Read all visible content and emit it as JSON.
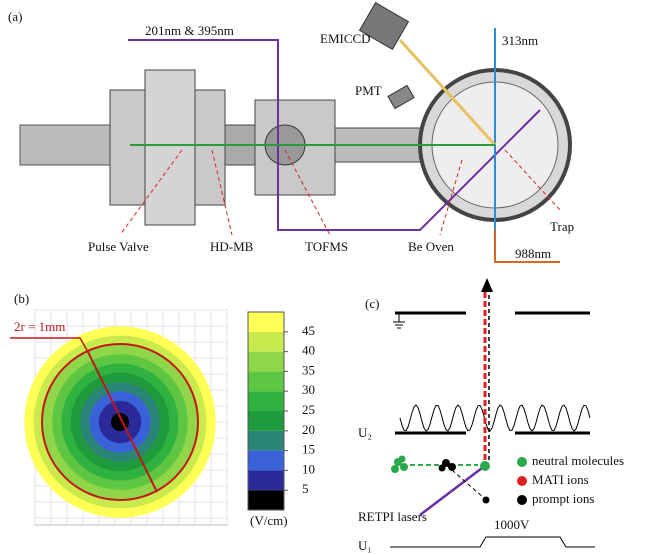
{
  "panel_a": {
    "label": "(a)",
    "beam_uv": "201nm & 395nm",
    "camera": "EMICCD",
    "beam_313": "313nm",
    "pmt": "PMT",
    "pulse_valve": "Pulse Valve",
    "hd_mb": "HD-MB",
    "tofms": "TOFMS",
    "be_oven": "Be Oven",
    "trap": "Trap",
    "beam_988": "988nm"
  },
  "panel_b": {
    "label": "(b)",
    "radius_note": "2r = 1mm",
    "chart_data": {
      "type": "colorbar",
      "ylim": [
        0,
        50
      ],
      "yticks": [
        5,
        10,
        15,
        20,
        25,
        30,
        35,
        40,
        45
      ],
      "unit": "(V/cm)",
      "colors": [
        "#000000",
        "#2a2a9a",
        "#3a62d8",
        "#2b8577",
        "#1f9a3c",
        "#2fb23f",
        "#5fc644",
        "#8fd748",
        "#c9ea4c",
        "#ffff55"
      ]
    }
  },
  "panel_c": {
    "label": "(c)",
    "u2": "U₂",
    "u1": "U₁",
    "voltage": "1000V",
    "neutral": "neutral molecules",
    "mati": "MATI ions",
    "prompt": "prompt ions",
    "lasers": "RETPI lasers"
  }
}
